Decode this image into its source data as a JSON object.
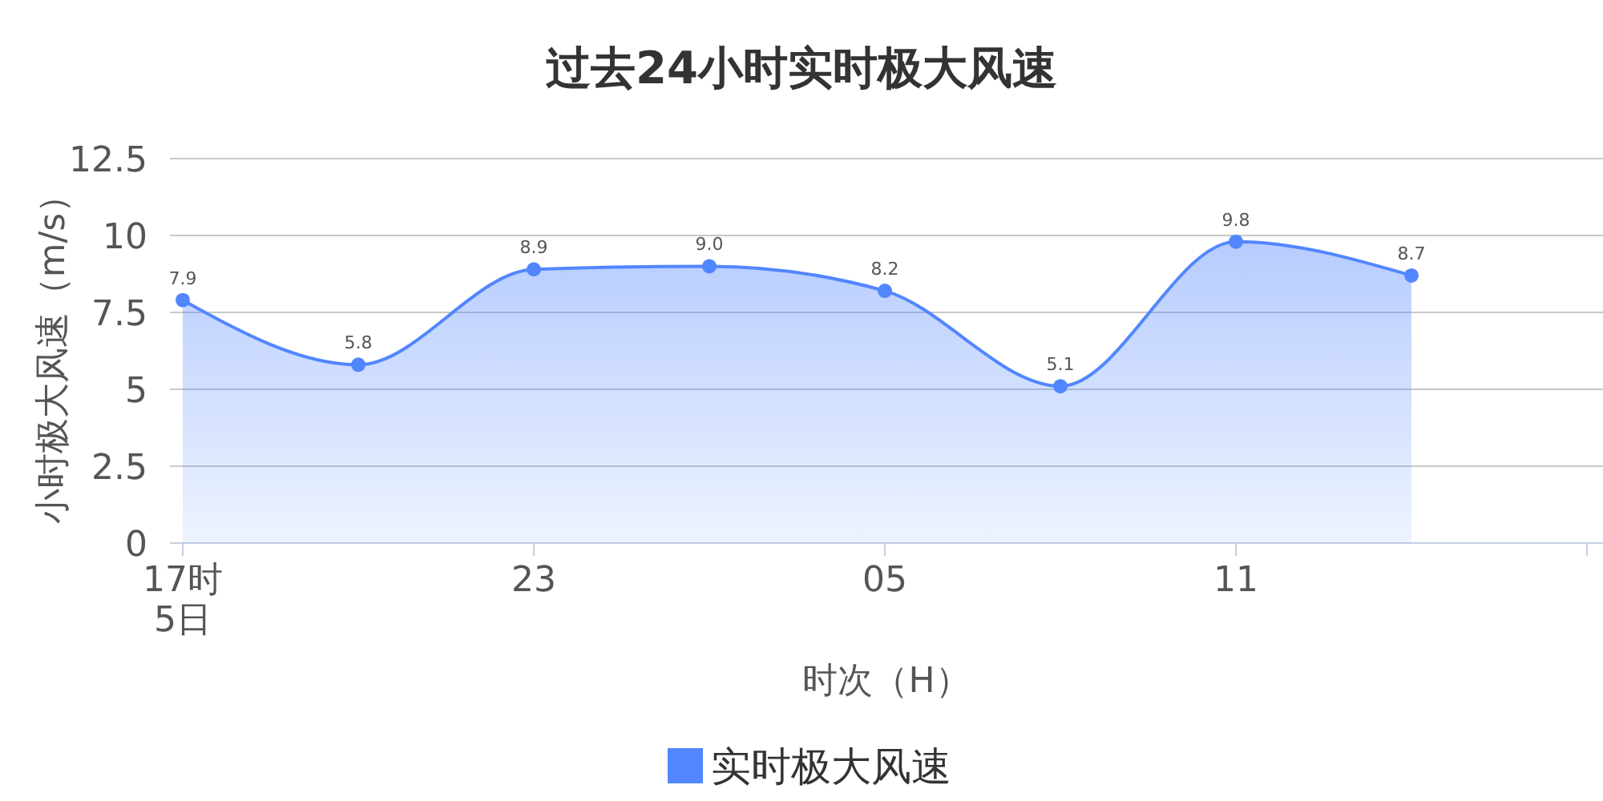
{
  "chart_data": {
    "type": "area",
    "title": "过去24小时实时极大风速",
    "xlabel": "时次（H）",
    "ylabel": "小时极大风速（m/s）",
    "categories": [
      "17时\n5日",
      null,
      "23",
      null,
      "05",
      null,
      "11",
      null,
      null
    ],
    "series": [
      {
        "name": "实时极大风速",
        "color": "#5286ff",
        "values": [
          7.9,
          5.8,
          8.9,
          9.0,
          8.2,
          5.1,
          9.8,
          8.7,
          null
        ],
        "value_labels": [
          "7.9",
          "5.8",
          "8.9",
          "9.0",
          "8.2",
          "5.1",
          "9.8",
          "8.7",
          null
        ]
      }
    ],
    "ylim": [
      0,
      12.5
    ],
    "yticks": [
      0,
      2.5,
      5,
      7.5,
      10,
      12.5
    ],
    "grid": "y",
    "legend": "bottom",
    "marker": "circle",
    "line_style": "solid"
  }
}
